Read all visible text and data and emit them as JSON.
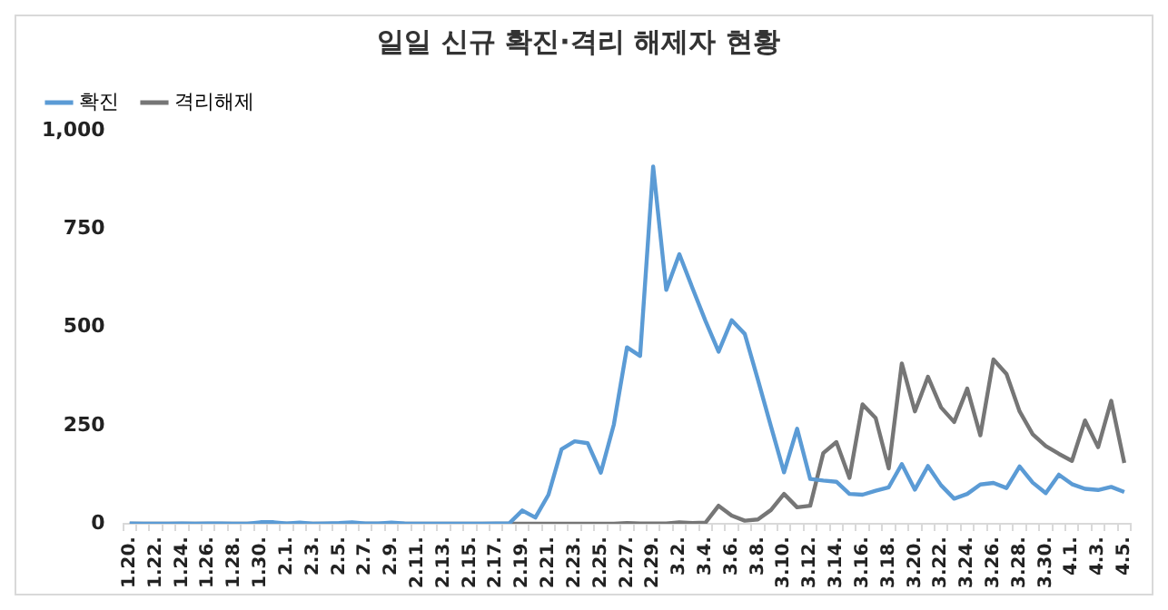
{
  "chart_data": {
    "type": "line",
    "title": "일일 신규 확진·격리 해제자 현황",
    "categories": [
      "1.20.",
      null,
      "1.22.",
      null,
      "1.24.",
      null,
      "1.26.",
      null,
      "1.28.",
      null,
      "1.30.",
      null,
      "2.1.",
      null,
      "2.3.",
      null,
      "2.5.",
      null,
      "2.7.",
      null,
      "2.9.",
      null,
      "2.11.",
      null,
      "2.13.",
      null,
      "2.15.",
      null,
      "2.17.",
      null,
      "2.19.",
      null,
      "2.21.",
      null,
      "2.23.",
      null,
      "2.25.",
      null,
      "2.27.",
      null,
      "2.29.",
      null,
      "3.2.",
      null,
      "3.4.",
      null,
      "3.6.",
      null,
      "3.8.",
      null,
      "3.10.",
      null,
      "3.12.",
      null,
      "3.14.",
      null,
      "3.16.",
      null,
      "3.18.",
      null,
      "3.20.",
      null,
      "3.22.",
      null,
      "3.24.",
      null,
      "3.26.",
      null,
      "3.28.",
      null,
      "3.30.",
      null,
      "4.1.",
      null,
      "4.3.",
      null,
      "4.5."
    ],
    "series": [
      {
        "name": "확진",
        "color": "#5b9bd5",
        "values": [
          1,
          0,
          0,
          0,
          1,
          0,
          1,
          1,
          0,
          0,
          4,
          4,
          1,
          3,
          0,
          1,
          2,
          4,
          1,
          1,
          3,
          1,
          0,
          0,
          0,
          0,
          0,
          0,
          1,
          1,
          34,
          16,
          74,
          190,
          210,
          205,
          130,
          253,
          449,
          427,
          909,
          595,
          686,
          600,
          516,
          438,
          518,
          483,
          367,
          248,
          131,
          242,
          114,
          110,
          107,
          76,
          74,
          84,
          93,
          152,
          87,
          147,
          98,
          64,
          76,
          100,
          104,
          91,
          146,
          105,
          78,
          125,
          101,
          89,
          86,
          94,
          81
        ]
      },
      {
        "name": "격리해제",
        "color": "#767676",
        "values": [
          0,
          0,
          0,
          0,
          0,
          0,
          0,
          0,
          0,
          0,
          0,
          0,
          0,
          0,
          0,
          0,
          0,
          0,
          0,
          0,
          0,
          0,
          0,
          0,
          0,
          0,
          0,
          0,
          0,
          0,
          0,
          0,
          0,
          0,
          0,
          0,
          0,
          0,
          2,
          1,
          1,
          1,
          4,
          2,
          3,
          46,
          21,
          8,
          11,
          35,
          76,
          42,
          46,
          180,
          208,
          117,
          304,
          269,
          141,
          408,
          286,
          374,
          296,
          259,
          344,
          225,
          418,
          381,
          286,
          228,
          198,
          178,
          160,
          263,
          195,
          313,
          155
        ]
      }
    ],
    "ylim": [
      0,
      1000
    ],
    "yticks": [
      0,
      250,
      500,
      750,
      {
        "value": 1000,
        "label": "1,000"
      }
    ],
    "grid": false,
    "legend": "top left",
    "marker": "none",
    "line_style": "solid"
  }
}
